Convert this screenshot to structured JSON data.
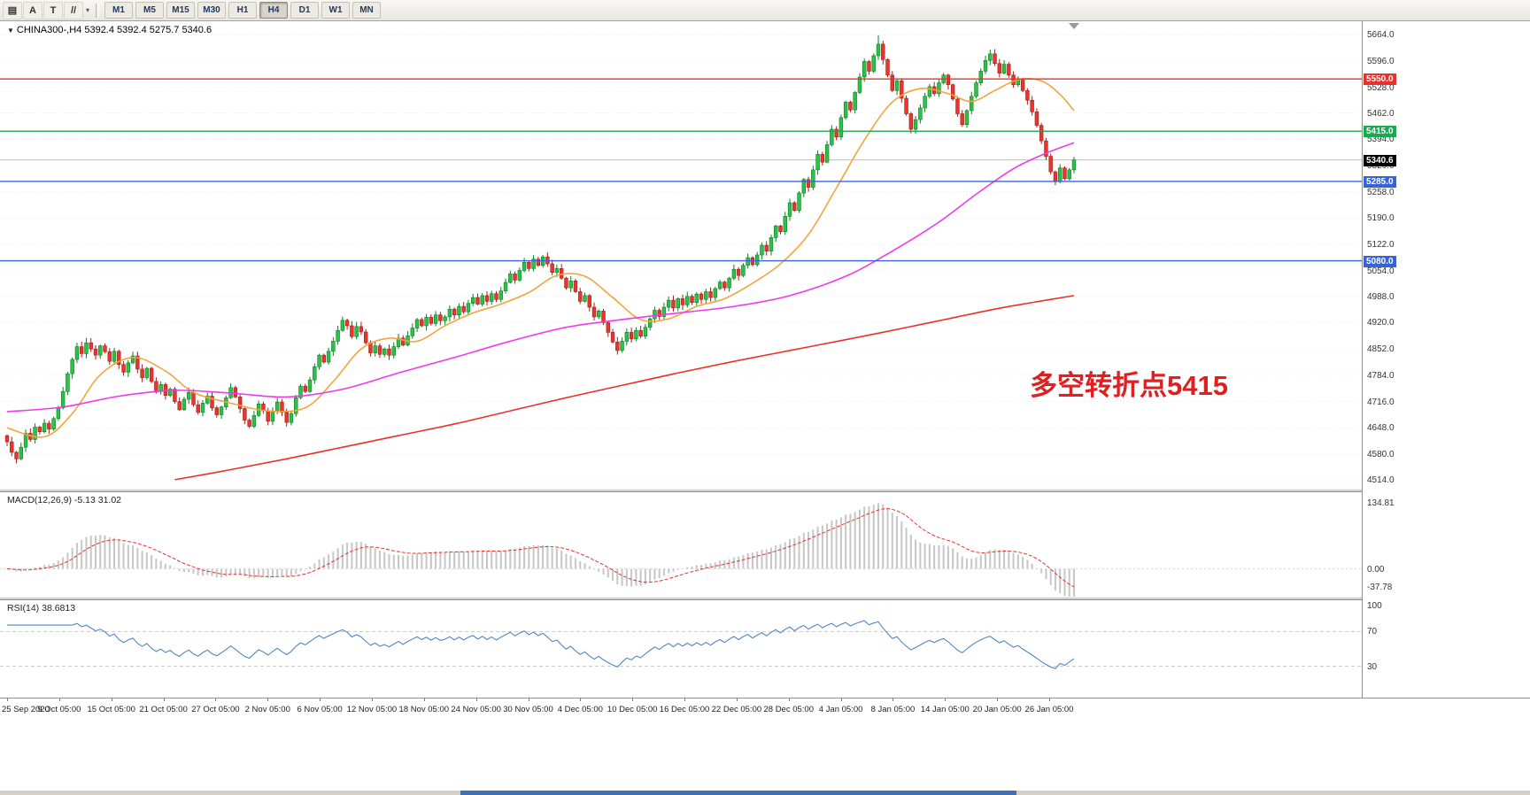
{
  "toolbar": {
    "tools": [
      {
        "name": "chart-grid-icon",
        "glyph": "▤",
        "caret": false
      },
      {
        "name": "cursor-tool",
        "glyph": "A",
        "caret": false
      },
      {
        "name": "text-tool",
        "glyph": "T",
        "caret": false
      },
      {
        "name": "draw-lines-tool",
        "glyph": "//",
        "caret": true
      }
    ],
    "caret_glyph": "▾",
    "periods": [
      {
        "label": "M1",
        "active": false
      },
      {
        "label": "M5",
        "active": false
      },
      {
        "label": "M15",
        "active": false
      },
      {
        "label": "M30",
        "active": false
      },
      {
        "label": "H1",
        "active": false
      },
      {
        "label": "H4",
        "active": true
      },
      {
        "label": "D1",
        "active": false
      },
      {
        "label": "W1",
        "active": false
      },
      {
        "label": "MN",
        "active": false
      }
    ]
  },
  "chart": {
    "collapse_glyph": "▼",
    "title": "CHINA300-,H4 5392.4 5392.4 5275.7 5340.6",
    "annotation": {
      "text": "多空转折点5415",
      "color": "#e02020"
    }
  },
  "chart_data": {
    "type": "candlestick",
    "symbol": "CHINA300-",
    "timeframe": "H4",
    "ohlc_current": {
      "open": 5392.4,
      "high": 5392.4,
      "low": 5275.7,
      "close": 5340.6
    },
    "main": {
      "first_open": 4628,
      "closes": [
        4612,
        4585,
        4568,
        4598,
        4634,
        4618,
        4650,
        4638,
        4660,
        4645,
        4672,
        4700,
        4742,
        4788,
        4825,
        4858,
        4840,
        4868,
        4852,
        4836,
        4860,
        4845,
        4820,
        4846,
        4812,
        4792,
        4816,
        4834,
        4800,
        4778,
        4802,
        4768,
        4742,
        4760,
        4732,
        4748,
        4716,
        4695,
        4722,
        4740,
        4708,
        4688,
        4712,
        4730,
        4700,
        4682,
        4702,
        4726,
        4752,
        4728,
        4698,
        4668,
        4652,
        4680,
        4710,
        4692,
        4665,
        4690,
        4715,
        4688,
        4662,
        4685,
        4726,
        4756,
        4742,
        4772,
        4806,
        4836,
        4818,
        4846,
        4872,
        4900,
        4926,
        4912,
        4884,
        4910,
        4896,
        4868,
        4842,
        4860,
        4838,
        4852,
        4836,
        4858,
        4880,
        4862,
        4886,
        4906,
        4928,
        4912,
        4934,
        4918,
        4940,
        4925,
        4935,
        4955,
        4940,
        4962,
        4948,
        4970,
        4985,
        4968,
        4990,
        4975,
        4995,
        4980,
        5002,
        5024,
        5046,
        5030,
        5055,
        5076,
        5060,
        5084,
        5068,
        5090,
        5072,
        5050,
        5060,
        5035,
        5010,
        5028,
        5000,
        4975,
        4990,
        4960,
        4935,
        4950,
        4920,
        4895,
        4870,
        4848,
        4872,
        4895,
        4878,
        4900,
        4885,
        4908,
        4930,
        4952,
        4936,
        4960,
        4978,
        4958,
        4982,
        4966,
        4988,
        4972,
        4994,
        4980,
        5000,
        4985,
        5008,
        5025,
        5010,
        5035,
        5058,
        5042,
        5068,
        5088,
        5070,
        5095,
        5120,
        5105,
        5140,
        5170,
        5155,
        5195,
        5230,
        5210,
        5255,
        5290,
        5270,
        5315,
        5355,
        5335,
        5380,
        5420,
        5400,
        5450,
        5490,
        5470,
        5515,
        5555,
        5595,
        5570,
        5610,
        5640,
        5600,
        5560,
        5520,
        5545,
        5500,
        5460,
        5420,
        5445,
        5475,
        5505,
        5530,
        5512,
        5540,
        5560,
        5535,
        5498,
        5460,
        5432,
        5468,
        5505,
        5540,
        5570,
        5598,
        5615,
        5590,
        5565,
        5588,
        5560,
        5535,
        5550,
        5520,
        5495,
        5465,
        5430,
        5390,
        5350,
        5310,
        5285,
        5320,
        5292,
        5315,
        5340.6
      ],
      "wick_extremes": {
        "high_idx": 187,
        "high": 5663,
        "low_idx": 225,
        "low": 5275.7
      },
      "up_color": "#2bc24a",
      "up_stroke": "#0f7d22",
      "down_color": "#ea342d",
      "down_stroke": "#a21f1a",
      "axis_ticks": [
        5664.0,
        5596.0,
        5528.0,
        5462.0,
        5394.0,
        5326.0,
        5258.0,
        5190.0,
        5122.0,
        5054.0,
        4988.0,
        4920.0,
        4852.0,
        4784.0,
        4716.0,
        4648.0,
        4580.0,
        4514.0
      ],
      "levels": [
        {
          "price": 5550.0,
          "label": "5550.0",
          "color": "#e8312b"
        },
        {
          "price": 5415.0,
          "label": "5415.0",
          "color": "#19a94e"
        },
        {
          "price": 5285.0,
          "label": "5285.0",
          "color": "#3863d8"
        },
        {
          "price": 5080.0,
          "label": "5080.0",
          "color": "#3863d8"
        }
      ],
      "price_tag": {
        "price": 5340.6,
        "label": "5340.6",
        "color": "#000000"
      },
      "ma": [
        {
          "name": "ma-fast-orange",
          "color": "#f2a53b",
          "points": [
            [
              0,
              4648
            ],
            [
              8,
              4625
            ],
            [
              14,
              4685
            ],
            [
              20,
              4785
            ],
            [
              27,
              4830
            ],
            [
              34,
              4795
            ],
            [
              40,
              4740
            ],
            [
              48,
              4712
            ],
            [
              56,
              4692
            ],
            [
              64,
              4700
            ],
            [
              70,
              4768
            ],
            [
              76,
              4852
            ],
            [
              82,
              4880
            ],
            [
              88,
              4872
            ],
            [
              94,
              4912
            ],
            [
              100,
              4945
            ],
            [
              106,
              4968
            ],
            [
              112,
              4998
            ],
            [
              118,
              5042
            ],
            [
              124,
              5040
            ],
            [
              130,
              4985
            ],
            [
              136,
              4928
            ],
            [
              142,
              4930
            ],
            [
              148,
              4962
            ],
            [
              154,
              4982
            ],
            [
              160,
              5022
            ],
            [
              166,
              5072
            ],
            [
              172,
              5148
            ],
            [
              178,
              5268
            ],
            [
              184,
              5392
            ],
            [
              190,
              5490
            ],
            [
              196,
              5525
            ],
            [
              202,
              5512
            ],
            [
              207,
              5492
            ],
            [
              212,
              5520
            ],
            [
              217,
              5548
            ],
            [
              222,
              5545
            ],
            [
              226,
              5510
            ],
            [
              229,
              5468
            ]
          ]
        },
        {
          "name": "ma-mid-magenta",
          "color": "#ee3bea",
          "points": [
            [
              0,
              4690
            ],
            [
              12,
              4702
            ],
            [
              24,
              4730
            ],
            [
              36,
              4745
            ],
            [
              48,
              4738
            ],
            [
              60,
              4728
            ],
            [
              72,
              4748
            ],
            [
              84,
              4790
            ],
            [
              96,
              4830
            ],
            [
              108,
              4872
            ],
            [
              120,
              4908
            ],
            [
              132,
              4928
            ],
            [
              144,
              4945
            ],
            [
              156,
              4962
            ],
            [
              168,
              4990
            ],
            [
              180,
              5040
            ],
            [
              190,
              5105
            ],
            [
              200,
              5180
            ],
            [
              208,
              5252
            ],
            [
              216,
              5318
            ],
            [
              223,
              5358
            ],
            [
              229,
              5385
            ]
          ]
        },
        {
          "name": "ma-slow-red",
          "color": "#e8312b",
          "points": [
            [
              36,
              4514
            ],
            [
              48,
              4540
            ],
            [
              60,
              4568
            ],
            [
              72,
              4598
            ],
            [
              84,
              4628
            ],
            [
              96,
              4658
            ],
            [
              108,
              4692
            ],
            [
              120,
              4726
            ],
            [
              132,
              4758
            ],
            [
              144,
              4790
            ],
            [
              156,
              4820
            ],
            [
              168,
              4848
            ],
            [
              180,
              4876
            ],
            [
              192,
              4905
            ],
            [
              202,
              4930
            ],
            [
              212,
              4955
            ],
            [
              220,
              4972
            ],
            [
              229,
              4990
            ]
          ]
        }
      ]
    },
    "macd": {
      "label": "MACD(12,26,9)",
      "values_text": "-5.13 31.02",
      "params": [
        12,
        26,
        9
      ],
      "hist_color": "#c6c6c6",
      "signal_color": "#dd352b",
      "axis": [
        {
          "v": 134.81,
          "t": "134.81"
        },
        {
          "v": 0,
          "t": "0.00"
        },
        {
          "v": -37.78,
          "t": "-37.78"
        }
      ]
    },
    "rsi": {
      "label": "RSI(14)",
      "value_text": "38.6813",
      "period": 14,
      "line_color": "#4f86c6",
      "guide_levels": [
        70,
        30
      ],
      "axis": [
        {
          "v": 100,
          "t": "100"
        },
        {
          "v": 70,
          "t": "70"
        },
        {
          "v": 30,
          "t": "30"
        }
      ]
    },
    "time_labels": [
      "25 Sep 2020",
      "9 Oct 05:00",
      "15 Oct 05:00",
      "21 Oct 05:00",
      "27 Oct 05:00",
      "2 Nov 05:00",
      "6 Nov 05:00",
      "12 Nov 05:00",
      "18 Nov 05:00",
      "24 Nov 05:00",
      "30 Nov 05:00",
      "4 Dec 05:00",
      "10 Dec 05:00",
      "16 Dec 05:00",
      "22 Dec 05:00",
      "28 Dec 05:00",
      "4 Jan 05:00",
      "8 Jan 05:00",
      "14 Jan 05:00",
      "20 Jan 05:00",
      "26 Jan 05:00"
    ]
  }
}
